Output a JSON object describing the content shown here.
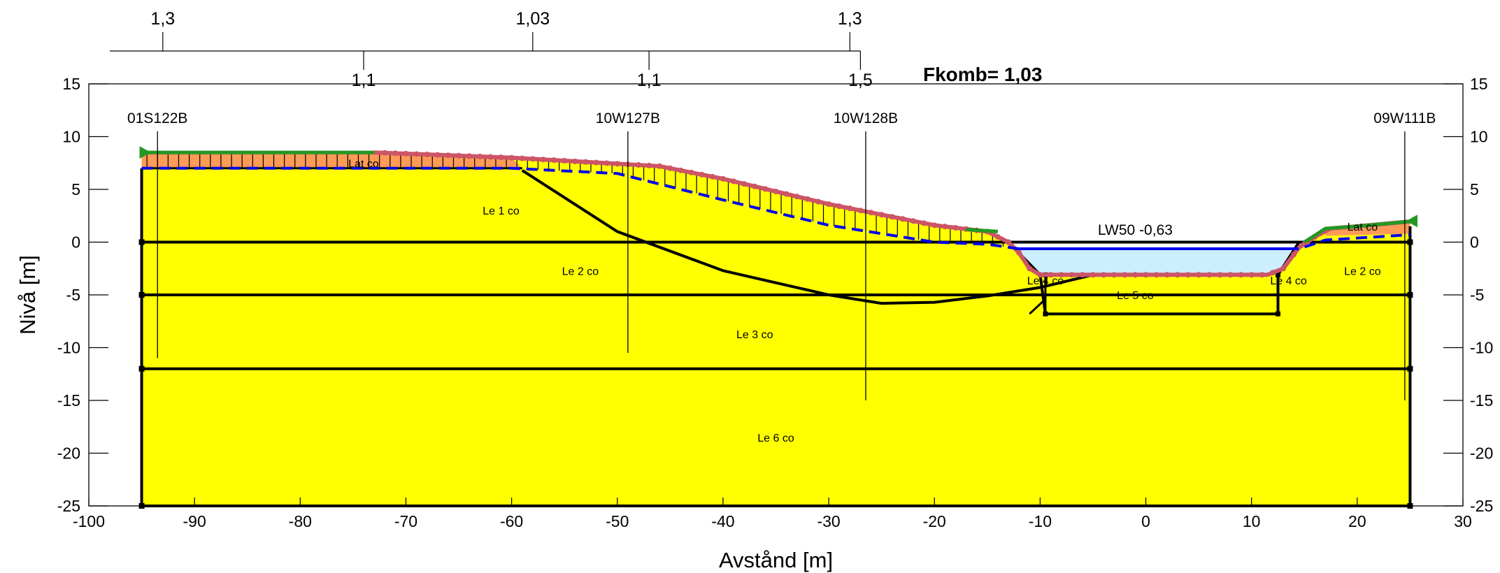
{
  "chart_data": {
    "type": "slope-stability-cross-section",
    "xlabel": "Avstånd [m]",
    "ylabel": "Nivå [m]",
    "xlim": [
      -100,
      30
    ],
    "ylim": [
      -25,
      15
    ],
    "x_ticks": [
      -100,
      -90,
      -80,
      -70,
      -60,
      -50,
      -40,
      -30,
      -20,
      -10,
      0,
      10,
      20,
      30
    ],
    "y_ticks": [
      15,
      10,
      5,
      0,
      -5,
      -10,
      -15,
      -20,
      -25
    ],
    "fkomb_label": "Fkomb= 1,03",
    "top_factors_upper": [
      {
        "x": -93,
        "label": "1,3"
      },
      {
        "x": -58,
        "label": "1,03"
      },
      {
        "x": -28,
        "label": "1,3"
      }
    ],
    "top_factors_lower": [
      {
        "x": -74,
        "label": "1,1"
      },
      {
        "x": -47,
        "label": "1,1"
      },
      {
        "x": -27,
        "label": "1,5"
      }
    ],
    "boreholes": [
      {
        "name": "01S122B",
        "x": -93.5,
        "bottom": -11
      },
      {
        "name": "10W127B",
        "x": -49,
        "bottom": -10.5
      },
      {
        "name": "10W128B",
        "x": -26.5,
        "bottom": -15
      },
      {
        "name": "09W111B",
        "x": 24.5,
        "bottom": -15
      }
    ],
    "water_level_label": "LW50 -0,63",
    "soil_layers": [
      {
        "name": "Lat co",
        "x": -74,
        "y": 7.5
      },
      {
        "name": "Le 1 co",
        "x": -61,
        "y": 3
      },
      {
        "name": "Le 2 co",
        "x": -53.5,
        "y": -2.7
      },
      {
        "name": "Le 3 co",
        "x": -37,
        "y": -8.7
      },
      {
        "name": "Le 4 co",
        "x": -9.5,
        "y": -3.6
      },
      {
        "name": "Le 5 co",
        "x": -1,
        "y": -5
      },
      {
        "name": "Le 4 co",
        "x": 13.5,
        "y": -3.6
      },
      {
        "name": "Le 2 co",
        "x": 20.5,
        "y": -2.7
      },
      {
        "name": "Le 6 co",
        "x": -35,
        "y": -18.5
      },
      {
        "name": "Lat co",
        "x": 20.5,
        "y": 1.5
      }
    ],
    "ground_surface": [
      [
        -95,
        8.5
      ],
      [
        -73,
        8.5
      ],
      [
        -60,
        8
      ],
      [
        -46,
        7.2
      ],
      [
        -40,
        6
      ],
      [
        -30,
        3.6
      ],
      [
        -20,
        1.6
      ],
      [
        -15,
        1
      ],
      [
        -13,
        0
      ],
      [
        -12,
        -1
      ],
      [
        -11,
        -2.5
      ],
      [
        -10,
        -3.1
      ],
      [
        11.5,
        -3.1
      ],
      [
        13,
        -2.5
      ],
      [
        14.5,
        -0.5
      ],
      [
        16,
        0.5
      ],
      [
        17.5,
        1.3
      ],
      [
        20,
        1.5
      ],
      [
        25.5,
        2
      ]
    ],
    "layer_top_surface": [
      [
        -95,
        7
      ],
      [
        -73,
        7
      ],
      [
        -60,
        7
      ],
      [
        -50,
        6.5
      ],
      [
        -40,
        4
      ],
      [
        -30,
        1.6
      ],
      [
        -20,
        0
      ],
      [
        -15,
        -0.2
      ],
      [
        -12,
        -0.63
      ]
    ],
    "slip_surface": [
      [
        -59,
        6.8
      ],
      [
        -50,
        1
      ],
      [
        -40,
        -2.7
      ],
      [
        -30,
        -5
      ],
      [
        -25,
        -5.8
      ],
      [
        -20,
        -5.7
      ],
      [
        -15,
        -5.1
      ],
      [
        -10,
        -4.3
      ],
      [
        -5,
        -3.1
      ]
    ],
    "layer_boundaries": [
      0,
      -5,
      -12,
      -25
    ],
    "model_xlim": [
      -95,
      25
    ]
  },
  "colors": {
    "soil": "#ffff00",
    "water": "#cceeff",
    "surface_load": "#cc5566",
    "fill_band": "#ff8866",
    "water_line": "#0000ee",
    "green": "#229922"
  }
}
